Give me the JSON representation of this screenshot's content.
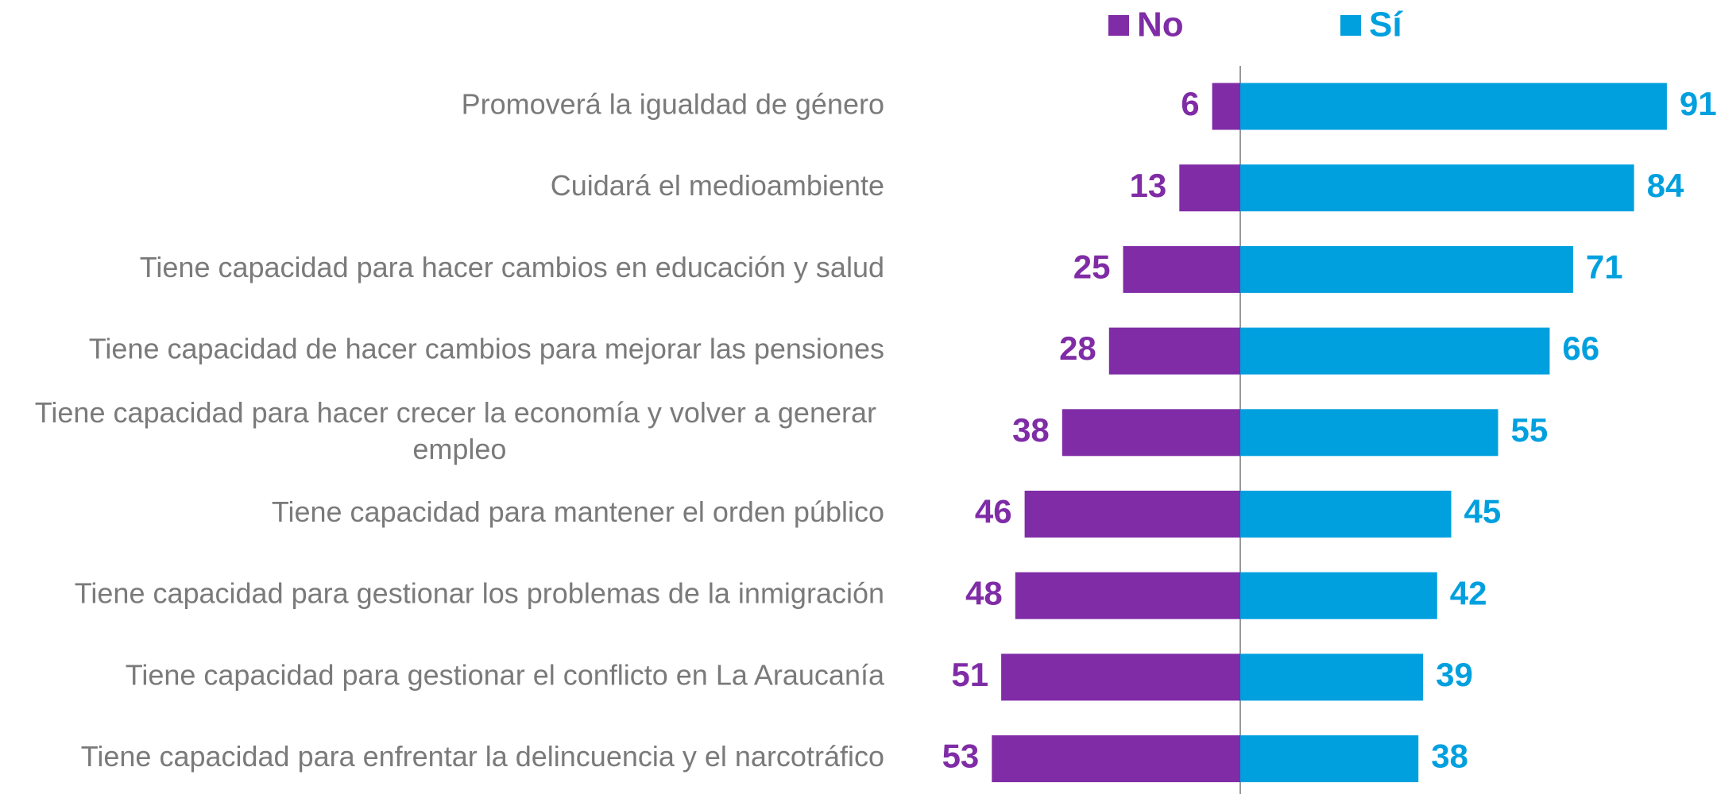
{
  "chart_data": {
    "type": "diverging_bar",
    "categories": [
      "Promoverá la igualdad de género",
      "Cuidará el medioambiente",
      "Tiene capacidad para hacer cambios en educación y salud",
      "Tiene capacidad de hacer cambios para mejorar las pensiones",
      "Tiene capacidad para hacer crecer la economía y volver a generar empleo",
      "Tiene capacidad para mantener el orden público",
      "Tiene capacidad para gestionar los problemas de la inmigración",
      "Tiene capacidad para gestionar el conflicto en La Araucanía",
      "Tiene capacidad para enfrentar la delincuencia y el narcotráfico"
    ],
    "series": [
      {
        "name": "No",
        "color": "#7f2ca6",
        "values": [
          6,
          13,
          25,
          28,
          38,
          46,
          48,
          51,
          53
        ]
      },
      {
        "name": "Sí",
        "color": "#00a0df",
        "values": [
          91,
          84,
          71,
          66,
          55,
          45,
          42,
          39,
          38
        ]
      }
    ],
    "legend": "top"
  }
}
